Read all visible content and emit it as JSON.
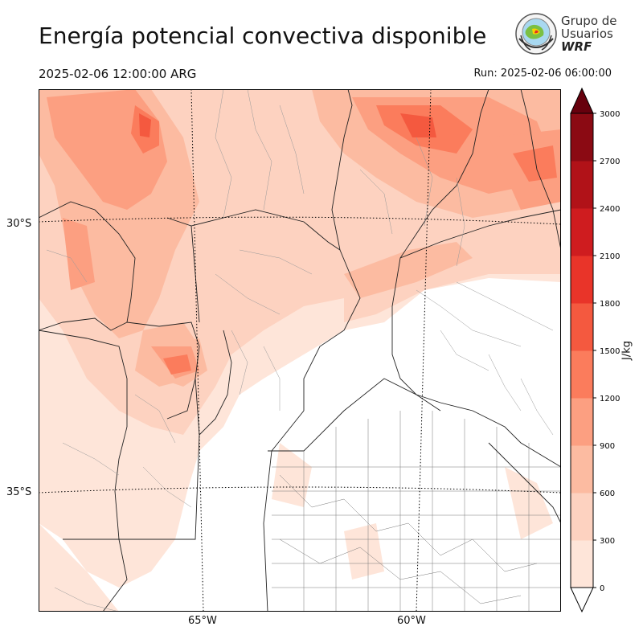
{
  "header": {
    "title": "Energía potencial convectiva disponible",
    "valid_time": "2025-02-06 12:00:00 ARG",
    "run_time": "Run: 2025-02-06 06:00:00"
  },
  "logo": {
    "line1": "Grupo de",
    "line2": "Usuarios",
    "line3": "WRF"
  },
  "map": {
    "lat_labels": [
      "30°S",
      "35°S"
    ],
    "lon_labels": [
      "65°W",
      "60°W"
    ]
  },
  "colorbar": {
    "unit": "J/kg",
    "ticks": [
      "0",
      "300",
      "600",
      "900",
      "1200",
      "1500",
      "1800",
      "2100",
      "2400",
      "2700",
      "3000"
    ],
    "colors": [
      "#fee5d9",
      "#fdd2c0",
      "#fcbba1",
      "#fc9f81",
      "#fb7c5c",
      "#f4593f",
      "#e93429",
      "#cf1c1f",
      "#b11218",
      "#8b0a13"
    ]
  }
}
